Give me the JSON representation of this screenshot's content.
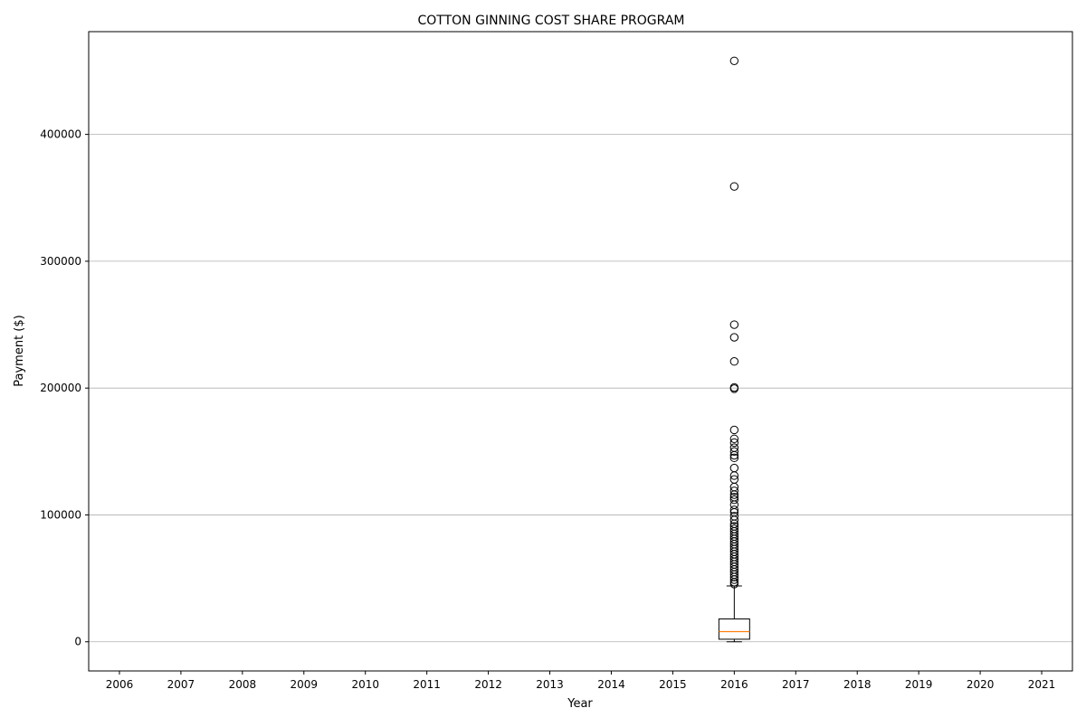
{
  "chart_data": {
    "type": "boxplot",
    "title": "COTTON GINNING COST SHARE PROGRAM",
    "xlabel": "Year",
    "ylabel": "Payment ($)",
    "categories": [
      "2006",
      "2007",
      "2008",
      "2009",
      "2010",
      "2011",
      "2012",
      "2013",
      "2014",
      "2015",
      "2016",
      "2017",
      "2018",
      "2019",
      "2020",
      "2021"
    ],
    "y_ticks": [
      0,
      100000,
      200000,
      300000,
      400000
    ],
    "ylim": [
      -23000,
      481000
    ],
    "grid": "horizontal",
    "boxes": [
      {
        "category": "2016",
        "whisker_low": 0,
        "q1": 2000,
        "median": 8000,
        "q3": 18000,
        "whisker_high": 44000,
        "outliers": [
          458000,
          359000,
          250000,
          240000,
          221000,
          200500,
          199500,
          167000,
          160000,
          157000,
          153000,
          150000,
          147000,
          145000,
          137000,
          131000,
          128000,
          122000,
          119000,
          116000,
          114000,
          112000,
          108000,
          104000,
          102000,
          99000,
          96000,
          93000,
          91000,
          89000,
          87000,
          85000,
          83000,
          81000,
          79000,
          77000,
          75000,
          73000,
          71000,
          69000,
          67000,
          65000,
          63000,
          61000,
          59000,
          57000,
          55000,
          53000,
          51000,
          49000,
          47000,
          45500
        ]
      }
    ]
  }
}
